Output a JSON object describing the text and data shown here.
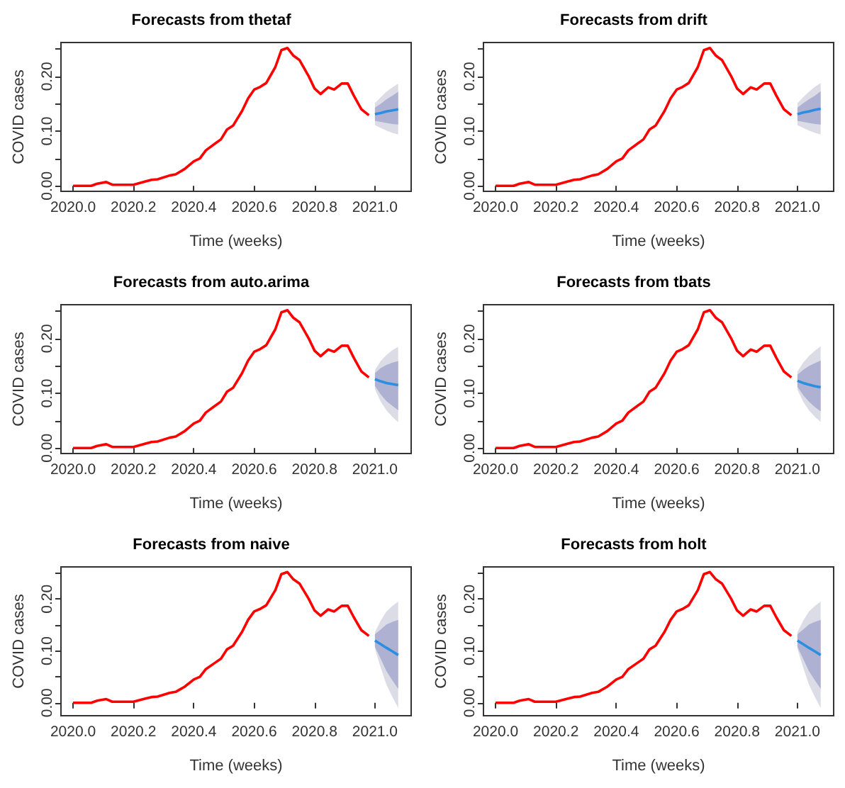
{
  "chart_data": [
    {
      "type": "line",
      "title": "Forecasts from thetaf",
      "xlabel": "Time (weeks)",
      "ylabel": "COVID cases",
      "xlim": [
        2019.96,
        2021.12
      ],
      "ylim": [
        -0.01,
        0.262
      ],
      "xticks": [
        {
          "value": 2020,
          "label": "2020.0"
        },
        {
          "value": 2020.2,
          "label": "2020.2"
        },
        {
          "value": 2020.4,
          "label": "2020.4"
        },
        {
          "value": 2020.6,
          "label": "2020.6"
        },
        {
          "value": 2020.8,
          "label": "2020.8"
        },
        {
          "value": 2021,
          "label": "2021.0"
        }
      ],
      "yticks": [
        {
          "value": 0,
          "label": "0.00"
        },
        {
          "value": 0.05,
          "label": null
        },
        {
          "value": 0.1,
          "label": "0.10"
        },
        {
          "value": 0.15,
          "label": null
        },
        {
          "value": 0.2,
          "label": "0.20"
        },
        {
          "value": 0.25,
          "label": null
        }
      ],
      "grid": false,
      "marker": "none",
      "series": [
        {
          "color": "#dcdce6",
          "x": [
            2021,
            2021.019,
            2021.038,
            2021.058,
            2021.077
          ],
          "values": [
            null,
            null,
            null,
            null,
            null
          ],
          "lower": [
            0.111,
            0.106,
            0.101,
            0.097,
            0.094
          ],
          "upper": [
            0.151,
            0.162,
            0.172,
            0.18,
            0.187
          ]
        },
        {
          "color": "#aeb1d2",
          "x": [
            2021,
            2021.019,
            2021.038,
            2021.058,
            2021.077
          ],
          "values": [
            null,
            null,
            null,
            null,
            null
          ],
          "lower": [
            0.119,
            0.117,
            0.115,
            0.113,
            0.112
          ],
          "upper": [
            0.143,
            0.15,
            0.158,
            0.165,
            0.172
          ]
        },
        {
          "color": "#ff0000",
          "x": [
            2020,
            2020.06,
            2020.08,
            2020.11,
            2020.13,
            2020.2,
            2020.24,
            2020.26,
            2020.28,
            2020.32,
            2020.34,
            2020.37,
            2020.4,
            2020.42,
            2020.44,
            2020.47,
            2020.49,
            2020.51,
            2020.53,
            2020.56,
            2020.58,
            2020.6,
            2020.62,
            2020.64,
            2020.67,
            2020.69,
            2020.71,
            2020.73,
            2020.75,
            2020.78,
            2020.8,
            2020.82,
            2020.845,
            2020.865,
            2020.89,
            2020.91,
            2020.93,
            2020.955,
            2020.98
          ],
          "values": [
            0,
            0,
            0.004,
            0.007,
            0.002,
            0.002,
            0.008,
            0.011,
            0.012,
            0.019,
            0.021,
            0.031,
            0.045,
            0.05,
            0.065,
            0.077,
            0.085,
            0.103,
            0.11,
            0.137,
            0.16,
            0.176,
            0.181,
            0.188,
            0.217,
            0.248,
            0.252,
            0.238,
            0.23,
            0.201,
            0.178,
            0.168,
            0.18,
            0.176,
            0.187,
            0.187,
            0.165,
            0.14,
            0.129
          ]
        },
        {
          "color": "#2b8ee0",
          "x": [
            2021,
            2021.019,
            2021.038,
            2021.058,
            2021.077
          ],
          "values": [
            0.131,
            0.133,
            0.136,
            0.138,
            0.14
          ]
        }
      ]
    },
    {
      "type": "line",
      "title": "Forecasts from drift",
      "xlabel": "Time (weeks)",
      "ylabel": "COVID cases",
      "xlim": [
        2019.96,
        2021.12
      ],
      "ylim": [
        -0.01,
        0.262
      ],
      "xticks": [
        {
          "value": 2020,
          "label": "2020.0"
        },
        {
          "value": 2020.2,
          "label": "2020.2"
        },
        {
          "value": 2020.4,
          "label": "2020.4"
        },
        {
          "value": 2020.6,
          "label": "2020.6"
        },
        {
          "value": 2020.8,
          "label": "2020.8"
        },
        {
          "value": 2021,
          "label": "2021.0"
        }
      ],
      "yticks": [
        {
          "value": 0,
          "label": "0.00"
        },
        {
          "value": 0.05,
          "label": null
        },
        {
          "value": 0.1,
          "label": "0.10"
        },
        {
          "value": 0.15,
          "label": null
        },
        {
          "value": 0.2,
          "label": "0.20"
        },
        {
          "value": 0.25,
          "label": null
        }
      ],
      "grid": false,
      "marker": "none",
      "series": [
        {
          "color": "#dcdce6",
          "x": [
            2021,
            2021.019,
            2021.038,
            2021.058,
            2021.077
          ],
          "values": [
            null,
            null,
            null,
            null,
            null
          ],
          "lower": [
            0.111,
            0.106,
            0.101,
            0.097,
            0.094
          ],
          "upper": [
            0.151,
            0.162,
            0.172,
            0.181,
            0.188
          ]
        },
        {
          "color": "#aeb1d2",
          "x": [
            2021,
            2021.019,
            2021.038,
            2021.058,
            2021.077
          ],
          "values": [
            null,
            null,
            null,
            null,
            null
          ],
          "lower": [
            0.119,
            0.117,
            0.115,
            0.113,
            0.112
          ],
          "upper": [
            0.143,
            0.151,
            0.158,
            0.165,
            0.173
          ]
        },
        {
          "color": "#ff0000",
          "x": [
            2020,
            2020.06,
            2020.08,
            2020.11,
            2020.13,
            2020.2,
            2020.24,
            2020.26,
            2020.28,
            2020.32,
            2020.34,
            2020.37,
            2020.4,
            2020.42,
            2020.44,
            2020.47,
            2020.49,
            2020.51,
            2020.53,
            2020.56,
            2020.58,
            2020.6,
            2020.62,
            2020.64,
            2020.67,
            2020.69,
            2020.71,
            2020.73,
            2020.75,
            2020.78,
            2020.8,
            2020.82,
            2020.845,
            2020.865,
            2020.89,
            2020.91,
            2020.93,
            2020.955,
            2020.98
          ],
          "values": [
            0,
            0,
            0.004,
            0.007,
            0.002,
            0.002,
            0.008,
            0.011,
            0.012,
            0.019,
            0.021,
            0.031,
            0.045,
            0.05,
            0.065,
            0.077,
            0.085,
            0.103,
            0.11,
            0.137,
            0.16,
            0.176,
            0.181,
            0.188,
            0.217,
            0.248,
            0.252,
            0.238,
            0.23,
            0.201,
            0.178,
            0.168,
            0.18,
            0.176,
            0.187,
            0.187,
            0.165,
            0.14,
            0.129
          ]
        },
        {
          "color": "#2b8ee0",
          "x": [
            2021,
            2021.019,
            2021.038,
            2021.058,
            2021.077
          ],
          "values": [
            0.131,
            0.134,
            0.136,
            0.139,
            0.141
          ]
        }
      ]
    },
    {
      "type": "line",
      "title": "Forecasts from auto.arima",
      "xlabel": "Time (weeks)",
      "ylabel": "COVID cases",
      "xlim": [
        2019.96,
        2021.12
      ],
      "ylim": [
        -0.01,
        0.262
      ],
      "xticks": [
        {
          "value": 2020,
          "label": "2020.0"
        },
        {
          "value": 2020.2,
          "label": "2020.2"
        },
        {
          "value": 2020.4,
          "label": "2020.4"
        },
        {
          "value": 2020.6,
          "label": "2020.6"
        },
        {
          "value": 2020.8,
          "label": "2020.8"
        },
        {
          "value": 2021,
          "label": "2021.0"
        }
      ],
      "yticks": [
        {
          "value": 0,
          "label": "0.00"
        },
        {
          "value": 0.05,
          "label": null
        },
        {
          "value": 0.1,
          "label": "0.10"
        },
        {
          "value": 0.15,
          "label": null
        },
        {
          "value": 0.2,
          "label": "0.20"
        },
        {
          "value": 0.25,
          "label": null
        }
      ],
      "grid": false,
      "marker": "none",
      "series": [
        {
          "color": "#dcdce6",
          "x": [
            2021,
            2021.019,
            2021.038,
            2021.058,
            2021.077
          ],
          "values": [
            null,
            null,
            null,
            null,
            null
          ],
          "lower": [
            0.108,
            0.085,
            0.069,
            0.057,
            0.047
          ],
          "upper": [
            0.143,
            0.159,
            0.17,
            0.179,
            0.185
          ]
        },
        {
          "color": "#aeb1d2",
          "x": [
            2021,
            2021.019,
            2021.038,
            2021.058,
            2021.077
          ],
          "values": [
            null,
            null,
            null,
            null,
            null
          ],
          "lower": [
            0.114,
            0.098,
            0.086,
            0.077,
            0.069
          ],
          "upper": [
            0.137,
            0.146,
            0.152,
            0.156,
            0.159
          ]
        },
        {
          "color": "#ff0000",
          "x": [
            2020,
            2020.06,
            2020.08,
            2020.11,
            2020.13,
            2020.2,
            2020.24,
            2020.26,
            2020.28,
            2020.32,
            2020.34,
            2020.37,
            2020.4,
            2020.42,
            2020.44,
            2020.47,
            2020.49,
            2020.51,
            2020.53,
            2020.56,
            2020.58,
            2020.6,
            2020.62,
            2020.64,
            2020.67,
            2020.69,
            2020.71,
            2020.73,
            2020.75,
            2020.78,
            2020.8,
            2020.82,
            2020.845,
            2020.865,
            2020.89,
            2020.91,
            2020.93,
            2020.955,
            2020.98
          ],
          "values": [
            0,
            0,
            0.004,
            0.007,
            0.002,
            0.002,
            0.008,
            0.011,
            0.012,
            0.019,
            0.021,
            0.031,
            0.045,
            0.05,
            0.065,
            0.077,
            0.085,
            0.103,
            0.11,
            0.137,
            0.16,
            0.176,
            0.181,
            0.188,
            0.217,
            0.248,
            0.252,
            0.238,
            0.23,
            0.201,
            0.178,
            0.168,
            0.18,
            0.176,
            0.187,
            0.187,
            0.165,
            0.14,
            0.129
          ]
        },
        {
          "color": "#2b8ee0",
          "x": [
            2021,
            2021.019,
            2021.038,
            2021.058,
            2021.077
          ],
          "values": [
            0.126,
            0.122,
            0.119,
            0.117,
            0.115
          ]
        }
      ]
    },
    {
      "type": "line",
      "title": "Forecasts from tbats",
      "xlabel": "Time (weeks)",
      "ylabel": "COVID cases",
      "xlim": [
        2019.96,
        2021.12
      ],
      "ylim": [
        -0.01,
        0.262
      ],
      "xticks": [
        {
          "value": 2020,
          "label": "2020.0"
        },
        {
          "value": 2020.2,
          "label": "2020.2"
        },
        {
          "value": 2020.4,
          "label": "2020.4"
        },
        {
          "value": 2020.6,
          "label": "2020.6"
        },
        {
          "value": 2020.8,
          "label": "2020.8"
        },
        {
          "value": 2021,
          "label": "2021.0"
        }
      ],
      "yticks": [
        {
          "value": 0,
          "label": "0.00"
        },
        {
          "value": 0.05,
          "label": null
        },
        {
          "value": 0.1,
          "label": "0.10"
        },
        {
          "value": 0.15,
          "label": null
        },
        {
          "value": 0.2,
          "label": "0.20"
        },
        {
          "value": 0.25,
          "label": null
        }
      ],
      "grid": false,
      "marker": "none",
      "series": [
        {
          "color": "#dcdce6",
          "x": [
            2021,
            2021.019,
            2021.038,
            2021.058,
            2021.077
          ],
          "values": [
            null,
            null,
            null,
            null,
            null
          ],
          "lower": [
            0.107,
            0.085,
            0.069,
            0.057,
            0.048
          ],
          "upper": [
            0.14,
            0.156,
            0.168,
            0.178,
            0.186
          ]
        },
        {
          "color": "#aeb1d2",
          "x": [
            2021,
            2021.019,
            2021.038,
            2021.058,
            2021.077
          ],
          "values": [
            null,
            null,
            null,
            null,
            null
          ],
          "lower": [
            0.112,
            0.097,
            0.085,
            0.075,
            0.067
          ],
          "upper": [
            0.134,
            0.143,
            0.15,
            0.155,
            0.16
          ]
        },
        {
          "color": "#ff0000",
          "x": [
            2020,
            2020.06,
            2020.08,
            2020.11,
            2020.13,
            2020.2,
            2020.24,
            2020.26,
            2020.28,
            2020.32,
            2020.34,
            2020.37,
            2020.4,
            2020.42,
            2020.44,
            2020.47,
            2020.49,
            2020.51,
            2020.53,
            2020.56,
            2020.58,
            2020.6,
            2020.62,
            2020.64,
            2020.67,
            2020.69,
            2020.71,
            2020.73,
            2020.75,
            2020.78,
            2020.8,
            2020.82,
            2020.845,
            2020.865,
            2020.89,
            2020.91,
            2020.93,
            2020.955,
            2020.98
          ],
          "values": [
            0,
            0,
            0.004,
            0.007,
            0.002,
            0.002,
            0.008,
            0.011,
            0.012,
            0.019,
            0.021,
            0.031,
            0.045,
            0.05,
            0.065,
            0.077,
            0.085,
            0.103,
            0.11,
            0.137,
            0.16,
            0.176,
            0.181,
            0.188,
            0.217,
            0.248,
            0.252,
            0.238,
            0.23,
            0.201,
            0.178,
            0.168,
            0.18,
            0.176,
            0.187,
            0.187,
            0.165,
            0.14,
            0.129
          ]
        },
        {
          "color": "#2b8ee0",
          "x": [
            2021,
            2021.019,
            2021.038,
            2021.058,
            2021.077
          ],
          "values": [
            0.123,
            0.119,
            0.116,
            0.113,
            0.111
          ]
        }
      ]
    },
    {
      "type": "line",
      "title": "Forecasts from naive",
      "xlabel": "Time (weeks)",
      "ylabel": "COVID cases",
      "xlim": [
        2019.96,
        2021.12
      ],
      "ylim": [
        -0.025,
        0.262
      ],
      "xticks": [
        {
          "value": 2020,
          "label": "2020.0"
        },
        {
          "value": 2020.2,
          "label": "2020.2"
        },
        {
          "value": 2020.4,
          "label": "2020.4"
        },
        {
          "value": 2020.6,
          "label": "2020.6"
        },
        {
          "value": 2020.8,
          "label": "2020.8"
        },
        {
          "value": 2021,
          "label": "2021.0"
        }
      ],
      "yticks": [
        {
          "value": 0,
          "label": "0.00"
        },
        {
          "value": 0.05,
          "label": null
        },
        {
          "value": 0.1,
          "label": "0.10"
        },
        {
          "value": 0.15,
          "label": null
        },
        {
          "value": 0.2,
          "label": "0.20"
        },
        {
          "value": 0.25,
          "label": null
        }
      ],
      "grid": false,
      "marker": "none",
      "series": [
        {
          "color": "#dcdce6",
          "x": [
            2021,
            2021.019,
            2021.038,
            2021.058,
            2021.077
          ],
          "values": [
            null,
            null,
            null,
            null,
            null
          ],
          "lower": [
            0.104,
            0.068,
            0.035,
            0.011,
            -0.01
          ],
          "upper": [
            0.136,
            0.158,
            0.176,
            0.187,
            0.195
          ]
        },
        {
          "color": "#aeb1d2",
          "x": [
            2021,
            2021.019,
            2021.038,
            2021.058,
            2021.077
          ],
          "values": [
            null,
            null,
            null,
            null,
            null
          ],
          "lower": [
            0.108,
            0.085,
            0.061,
            0.043,
            0.027
          ],
          "upper": [
            0.132,
            0.141,
            0.151,
            0.156,
            0.16
          ]
        },
        {
          "color": "#ff0000",
          "x": [
            2020,
            2020.06,
            2020.08,
            2020.11,
            2020.13,
            2020.2,
            2020.24,
            2020.26,
            2020.28,
            2020.32,
            2020.34,
            2020.37,
            2020.4,
            2020.42,
            2020.44,
            2020.47,
            2020.49,
            2020.51,
            2020.53,
            2020.56,
            2020.58,
            2020.6,
            2020.62,
            2020.64,
            2020.67,
            2020.69,
            2020.71,
            2020.73,
            2020.75,
            2020.78,
            2020.8,
            2020.82,
            2020.845,
            2020.865,
            2020.89,
            2020.91,
            2020.93,
            2020.955,
            2020.98
          ],
          "values": [
            0,
            0,
            0.004,
            0.007,
            0.002,
            0.002,
            0.008,
            0.011,
            0.012,
            0.019,
            0.021,
            0.031,
            0.045,
            0.05,
            0.065,
            0.077,
            0.085,
            0.103,
            0.11,
            0.137,
            0.16,
            0.176,
            0.181,
            0.188,
            0.217,
            0.248,
            0.252,
            0.238,
            0.23,
            0.201,
            0.178,
            0.168,
            0.18,
            0.176,
            0.187,
            0.187,
            0.165,
            0.14,
            0.129
          ]
        },
        {
          "color": "#2b8ee0",
          "x": [
            2021,
            2021.019,
            2021.038,
            2021.058,
            2021.077
          ],
          "values": [
            0.12,
            0.113,
            0.106,
            0.099,
            0.092
          ]
        }
      ]
    },
    {
      "type": "line",
      "title": "Forecasts from holt",
      "xlabel": "Time (weeks)",
      "ylabel": "COVID cases",
      "xlim": [
        2019.96,
        2021.12
      ],
      "ylim": [
        -0.025,
        0.262
      ],
      "xticks": [
        {
          "value": 2020,
          "label": "2020.0"
        },
        {
          "value": 2020.2,
          "label": "2020.2"
        },
        {
          "value": 2020.4,
          "label": "2020.4"
        },
        {
          "value": 2020.6,
          "label": "2020.6"
        },
        {
          "value": 2020.8,
          "label": "2020.8"
        },
        {
          "value": 2021,
          "label": "2021.0"
        }
      ],
      "yticks": [
        {
          "value": 0,
          "label": "0.00"
        },
        {
          "value": 0.05,
          "label": null
        },
        {
          "value": 0.1,
          "label": "0.10"
        },
        {
          "value": 0.15,
          "label": null
        },
        {
          "value": 0.2,
          "label": "0.20"
        },
        {
          "value": 0.25,
          "label": null
        }
      ],
      "grid": false,
      "marker": "none",
      "series": [
        {
          "color": "#dcdce6",
          "x": [
            2021,
            2021.019,
            2021.038,
            2021.058,
            2021.077
          ],
          "values": [
            null,
            null,
            null,
            null,
            null
          ],
          "lower": [
            0.104,
            0.068,
            0.035,
            0.011,
            -0.01
          ],
          "upper": [
            0.136,
            0.158,
            0.176,
            0.187,
            0.195
          ]
        },
        {
          "color": "#aeb1d2",
          "x": [
            2021,
            2021.019,
            2021.038,
            2021.058,
            2021.077
          ],
          "values": [
            null,
            null,
            null,
            null,
            null
          ],
          "lower": [
            0.108,
            0.085,
            0.061,
            0.043,
            0.027
          ],
          "upper": [
            0.132,
            0.141,
            0.151,
            0.156,
            0.16
          ]
        },
        {
          "color": "#ff0000",
          "x": [
            2020,
            2020.06,
            2020.08,
            2020.11,
            2020.13,
            2020.2,
            2020.24,
            2020.26,
            2020.28,
            2020.32,
            2020.34,
            2020.37,
            2020.4,
            2020.42,
            2020.44,
            2020.47,
            2020.49,
            2020.51,
            2020.53,
            2020.56,
            2020.58,
            2020.6,
            2020.62,
            2020.64,
            2020.67,
            2020.69,
            2020.71,
            2020.73,
            2020.75,
            2020.78,
            2020.8,
            2020.82,
            2020.845,
            2020.865,
            2020.89,
            2020.91,
            2020.93,
            2020.955,
            2020.98
          ],
          "values": [
            0,
            0,
            0.004,
            0.007,
            0.002,
            0.002,
            0.008,
            0.011,
            0.012,
            0.019,
            0.021,
            0.031,
            0.045,
            0.05,
            0.065,
            0.077,
            0.085,
            0.103,
            0.11,
            0.137,
            0.16,
            0.176,
            0.181,
            0.188,
            0.217,
            0.248,
            0.252,
            0.238,
            0.23,
            0.201,
            0.178,
            0.168,
            0.18,
            0.176,
            0.187,
            0.187,
            0.165,
            0.14,
            0.129
          ]
        },
        {
          "color": "#2b8ee0",
          "x": [
            2021,
            2021.019,
            2021.038,
            2021.058,
            2021.077
          ],
          "values": [
            0.12,
            0.113,
            0.106,
            0.099,
            0.092
          ]
        }
      ]
    }
  ]
}
